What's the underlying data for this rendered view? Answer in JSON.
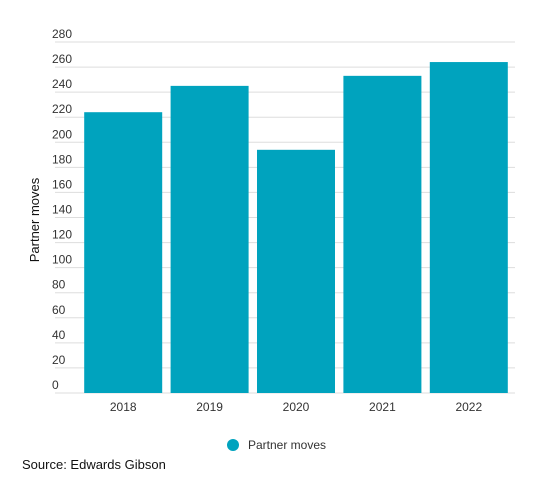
{
  "chart_data": {
    "type": "bar",
    "categories": [
      "2018",
      "2019",
      "2020",
      "2021",
      "2022"
    ],
    "series": [
      {
        "name": "Partner moves",
        "values": [
          224,
          245,
          194,
          253,
          264
        ]
      }
    ],
    "ylabel": "Partner moves",
    "xlabel": "",
    "ylim": [
      0,
      280
    ],
    "yticks": [
      0,
      20,
      40,
      60,
      80,
      100,
      120,
      140,
      160,
      180,
      200,
      220,
      240,
      260,
      280
    ],
    "grid": true,
    "legend_position": "bottom-center",
    "bar_color": "#00A3BE",
    "grid_color": "#dddddd",
    "source": "Source: Edwards Gibson"
  }
}
